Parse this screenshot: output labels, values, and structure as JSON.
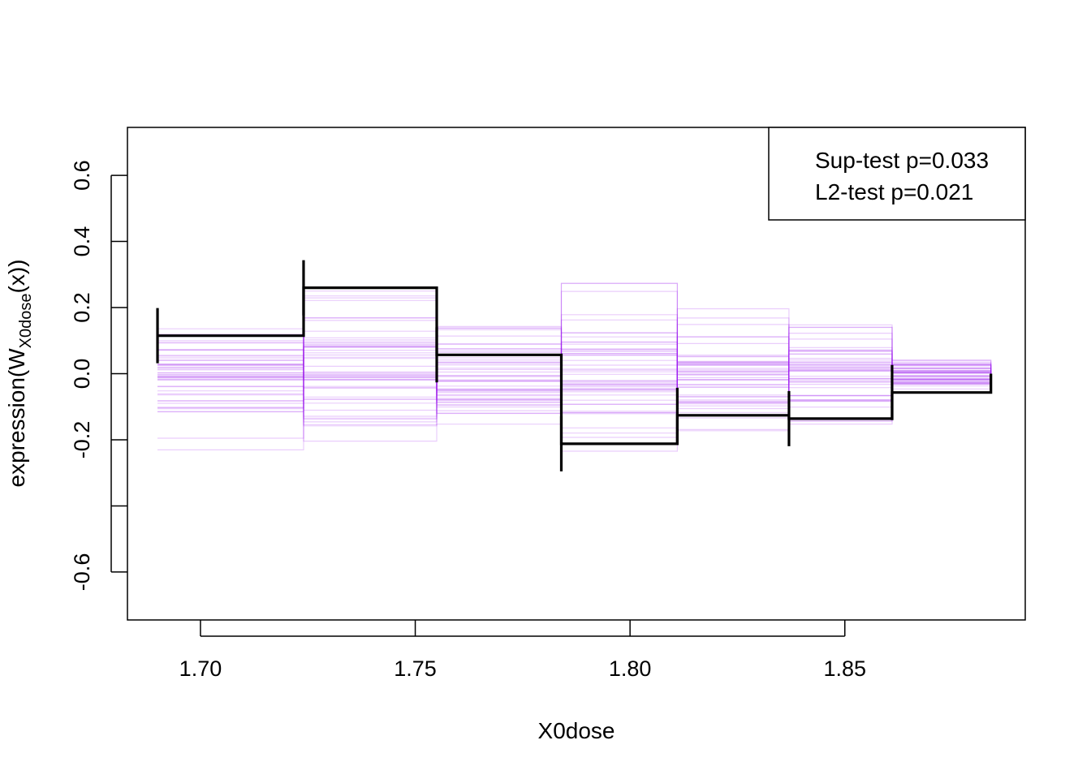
{
  "chart_data": {
    "type": "line",
    "subtype": "step",
    "title": "",
    "xlabel": "X0dose",
    "ylabel_main": "expression",
    "ylabel_w": "W",
    "ylabel_sub": "X0dose",
    "ylabel_tail": "(x))",
    "xlim": [
      1.683,
      1.892
    ],
    "ylim": [
      -0.745,
      0.745
    ],
    "x_ticks": [
      1.7,
      1.75,
      1.8,
      1.85
    ],
    "x_tick_labels": [
      "1.70",
      "1.75",
      "1.80",
      "1.85"
    ],
    "y_ticks": [
      -0.6,
      -0.4,
      -0.2,
      0.0,
      0.2,
      0.4,
      0.6
    ],
    "y_tick_labels": [
      "-0.6",
      "",
      "-0.2",
      "0.0",
      "0.2",
      "0.4",
      "0.6"
    ],
    "legend": {
      "position": "top-right",
      "entries": [
        "Sup-test p=0.033",
        "L2-test p=0.021"
      ]
    },
    "breakpoints": [
      1.69,
      1.724,
      1.755,
      1.784,
      1.811,
      1.837,
      1.861,
      1.884
    ],
    "observed": {
      "name": "observed",
      "color": "#000000",
      "values": [
        0.115,
        0.26,
        0.057,
        -0.212,
        -0.126,
        -0.136,
        -0.057,
        0.0
      ]
    },
    "simulated_color": "#a020f0",
    "simulated_count": 50
  }
}
